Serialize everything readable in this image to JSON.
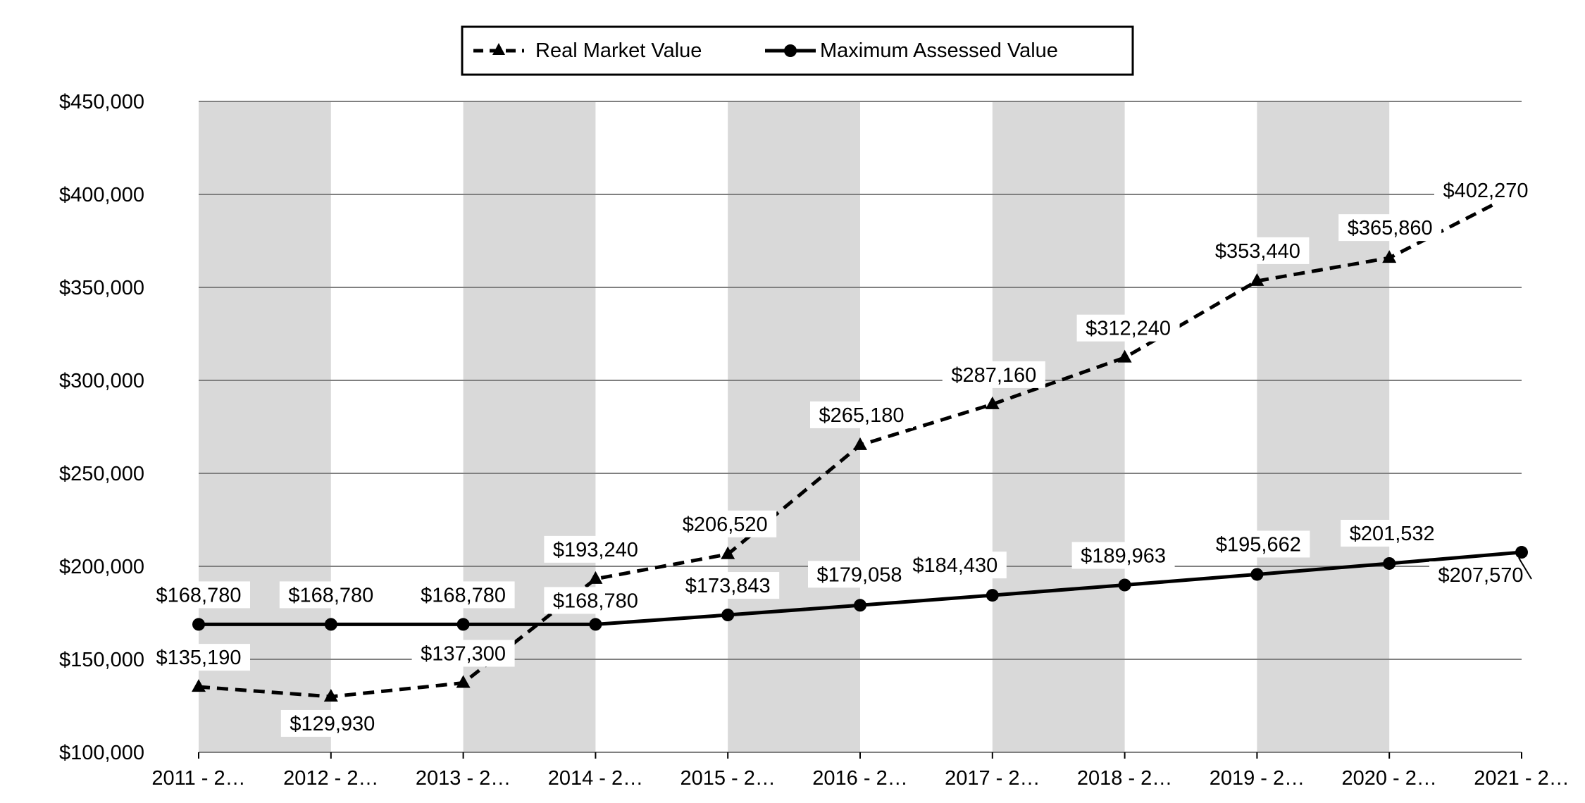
{
  "chart_data": {
    "type": "line",
    "categories": [
      "2011 - 2…",
      "2012 - 2…",
      "2013 - 2…",
      "2014 - 2…",
      "2015 - 2…",
      "2016 - 2…",
      "2017 - 2…",
      "2018 - 2…",
      "2019 - 2…",
      "2020 - 2…",
      "2021 - 2…"
    ],
    "series": [
      {
        "name": "Real Market Value",
        "style": "dashed",
        "marker": "triangle",
        "values": [
          135190,
          129930,
          137300,
          193240,
          206520,
          265180,
          287160,
          312240,
          353440,
          365860,
          402270
        ],
        "labels": [
          "$135,190",
          "$129,930",
          "$137,300",
          "$193,240",
          "$206,520",
          "$265,180",
          "$287,160",
          "$312,240",
          "$353,440",
          "$365,860",
          "$402,270"
        ]
      },
      {
        "name": "Maximum Assessed Value",
        "style": "solid",
        "marker": "circle",
        "values": [
          168780,
          168780,
          168780,
          168780,
          173843,
          179058,
          184430,
          189963,
          195662,
          201532,
          207570
        ],
        "labels": [
          "$168,780",
          "$168,780",
          "$168,780",
          "$168,780",
          "$173,843",
          "$179,058",
          "$184,430",
          "$189,963",
          "$195,662",
          "$201,532",
          "$207,570"
        ]
      }
    ],
    "yticks": [
      100000,
      150000,
      200000,
      250000,
      300000,
      350000,
      400000,
      450000
    ],
    "ytick_labels": [
      "$100,000",
      "$150,000",
      "$200,000",
      "$250,000",
      "$300,000",
      "$350,000",
      "$400,000",
      "$450,000"
    ],
    "ylim": [
      100000,
      450000
    ],
    "grid": true,
    "alternating_bands": true,
    "legend_position": "top-center",
    "colors": {
      "line": "#000000",
      "band": "#d9d9d9",
      "grid": "#808080"
    }
  }
}
